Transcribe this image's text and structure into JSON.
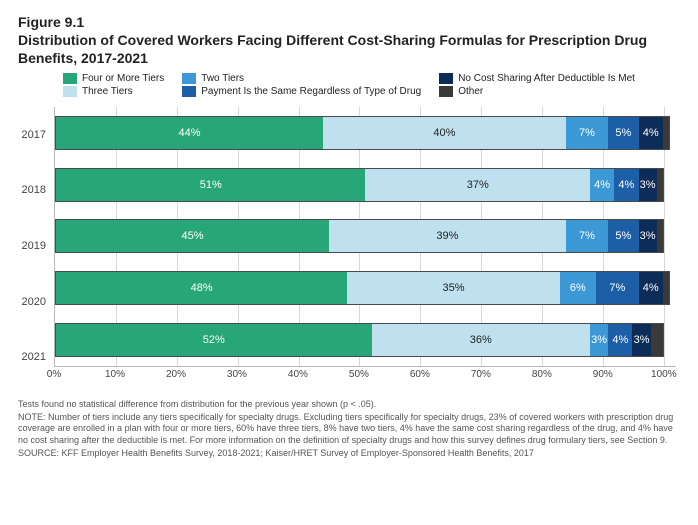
{
  "figure_number": "Figure 9.1",
  "title": "Distribution of Covered Workers Facing Different Cost-Sharing Formulas for Prescription Drug Benefits, 2017-2021",
  "legend": [
    {
      "label": "Four or More Tiers",
      "color": "#27a779"
    },
    {
      "label": "Three Tiers",
      "color": "#bfe1ef"
    },
    {
      "label": "Two Tiers",
      "color": "#3d99d6"
    },
    {
      "label": "Payment Is the Same Regardless of Type of Drug",
      "color": "#1d5fa6"
    },
    {
      "label": "No Cost Sharing After Deductible Is Met",
      "color": "#0d2c57"
    },
    {
      "label": "Other",
      "color": "#3a3a3a"
    }
  ],
  "chart": {
    "type": "stacked_bar_horizontal",
    "xlim": [
      0,
      102
    ],
    "xtick_step": 10,
    "xtick_max": 100,
    "background_color": "#ffffff",
    "grid_color": "#d8d8d8",
    "border_color": "#b8b8b8",
    "bar_border_color": "#4a4a4a",
    "categories": [
      "2017",
      "2018",
      "2019",
      "2020",
      "2021"
    ],
    "series_colors": [
      "#27a779",
      "#bfe1ef",
      "#3d99d6",
      "#1d5fa6",
      "#0d2c57",
      "#3a3a3a"
    ],
    "series_text_dark": [
      false,
      true,
      false,
      false,
      false,
      false
    ],
    "rows": [
      {
        "values": [
          44,
          40,
          7,
          5,
          4,
          1
        ],
        "labels": [
          "44%",
          "40%",
          "7%",
          "5%",
          "4%",
          ""
        ]
      },
      {
        "values": [
          51,
          37,
          4,
          4,
          3,
          1
        ],
        "labels": [
          "51%",
          "37%",
          "4%",
          "4%",
          "3%",
          ""
        ]
      },
      {
        "values": [
          45,
          39,
          7,
          5,
          3,
          1
        ],
        "labels": [
          "45%",
          "39%",
          "7%",
          "5%",
          "3%",
          ""
        ]
      },
      {
        "values": [
          48,
          35,
          6,
          7,
          4,
          1
        ],
        "labels": [
          "48%",
          "35%",
          "6%",
          "7%",
          "4%",
          ""
        ]
      },
      {
        "values": [
          52,
          36,
          3,
          4,
          3,
          2
        ],
        "labels": [
          "52%",
          "36%",
          "3%",
          "4%",
          "3%",
          ""
        ]
      }
    ]
  },
  "notes": {
    "line1": "Tests found no statistical difference from distribution for the previous year shown (p < .05).",
    "line2": "NOTE: Number of tiers include any tiers specifically for specialty drugs. Excluding tiers specifically for specialty drugs, 23% of covered workers with prescription drug coverage are enrolled in a plan with four or more tiers, 60% have three tiers, 8% have two tiers, 4% have the same cost sharing regardless of the drug, and 4% have no cost sharing after the deductible is met. For more information on the definition of specialty drugs and how this survey defines drug formulary tiers, see Section 9.",
    "line3": "SOURCE: KFF Employer Health Benefits Survey, 2018-2021; Kaiser/HRET Survey of Employer-Sponsored Health Benefits, 2017"
  }
}
